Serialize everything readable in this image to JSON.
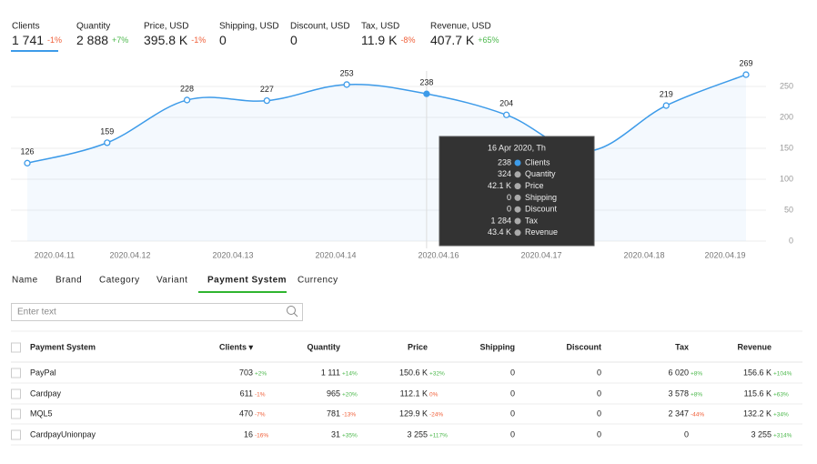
{
  "metrics": [
    {
      "label": "Clients",
      "value": "1 741",
      "delta": "-1%"
    },
    {
      "label": "Quantity",
      "value": "2 888",
      "delta": "+7%"
    },
    {
      "label": "Price, USD",
      "value": "395.8 K",
      "delta": "-1%"
    },
    {
      "label": "Shipping, USD",
      "value": "0"
    },
    {
      "label": "Discount, USD",
      "value": "0"
    },
    {
      "label": "Tax, USD",
      "value": "11.9 K",
      "delta": "-8%"
    },
    {
      "label": "Revenue, USD",
      "value": "407.7 K",
      "delta": "+65%"
    }
  ],
  "chart_data": {
    "type": "line",
    "x_labels": [
      "2020.04.11",
      "2020.04.12",
      "2020.04.13",
      "2020.04.14",
      "2020.04.16",
      "2020.04.17",
      "2020.04.18",
      "2020.04.19"
    ],
    "series": [
      {
        "name": "Clients",
        "color": "#3d9be9",
        "values": [
          126,
          159,
          228,
          227,
          253,
          238,
          204,
          145,
          219,
          269
        ]
      }
    ],
    "ylim": [
      0,
      275
    ],
    "yticks": [
      0,
      50,
      100,
      150,
      200,
      250
    ],
    "grid": true
  },
  "tooltip": {
    "title": "16 Apr 2020, Th",
    "rows": [
      {
        "value": "238",
        "label": "Clients",
        "color": "#3d9be9"
      },
      {
        "value": "324",
        "label": "Quantity",
        "color": "#aaaaaa"
      },
      {
        "value": "42.1 K",
        "label": "Price",
        "color": "#aaaaaa"
      },
      {
        "value": "0",
        "label": "Shipping",
        "color": "#aaaaaa"
      },
      {
        "value": "0",
        "label": "Discount",
        "color": "#aaaaaa"
      },
      {
        "value": "1 284",
        "label": "Tax",
        "color": "#aaaaaa"
      },
      {
        "value": "43.4 K",
        "label": "Revenue",
        "color": "#aaaaaa"
      }
    ]
  },
  "tabs": [
    "Name",
    "Brand",
    "Category",
    "Variant",
    "Payment System",
    "Currency"
  ],
  "search_placeholder": "Enter text",
  "table": {
    "headers": [
      "Payment System",
      "Clients ▾",
      "Quantity",
      "Price",
      "Shipping",
      "Discount",
      "Tax",
      "Revenue"
    ],
    "rows": [
      [
        "PayPal",
        {
          "value": "703",
          "delta": "+2%"
        },
        {
          "value": "1 111",
          "delta": "+14%"
        },
        {
          "value": "150.6 K",
          "delta": "+32%"
        },
        {
          "value": "0"
        },
        {
          "value": "0"
        },
        {
          "value": "6 020",
          "delta": "+8%"
        },
        {
          "value": "156.6 K",
          "delta": "+104%"
        }
      ],
      [
        "Cardpay",
        {
          "value": "611",
          "delta": "-1%"
        },
        {
          "value": "965",
          "delta": "+20%"
        },
        {
          "value": "112.1 K",
          "delta": "0%"
        },
        {
          "value": "0"
        },
        {
          "value": "0"
        },
        {
          "value": "3 578",
          "delta": "+8%"
        },
        {
          "value": "115.6 K",
          "delta": "+63%"
        }
      ],
      [
        "MQL5",
        {
          "value": "470",
          "delta": "-7%"
        },
        {
          "value": "781",
          "delta": "-13%"
        },
        {
          "value": "129.9 K",
          "delta": "-24%"
        },
        {
          "value": "0"
        },
        {
          "value": "0"
        },
        {
          "value": "2 347",
          "delta": "-44%"
        },
        {
          "value": "132.2 K",
          "delta": "+34%"
        }
      ],
      [
        "CardpayUnionpay",
        {
          "value": "16",
          "delta": "-16%"
        },
        {
          "value": "31",
          "delta": "+35%"
        },
        {
          "value": "3 255",
          "delta": "+117%"
        },
        {
          "value": "0"
        },
        {
          "value": "0"
        },
        {
          "value": "0"
        },
        {
          "value": "3 255",
          "delta": "+314%"
        }
      ]
    ]
  }
}
